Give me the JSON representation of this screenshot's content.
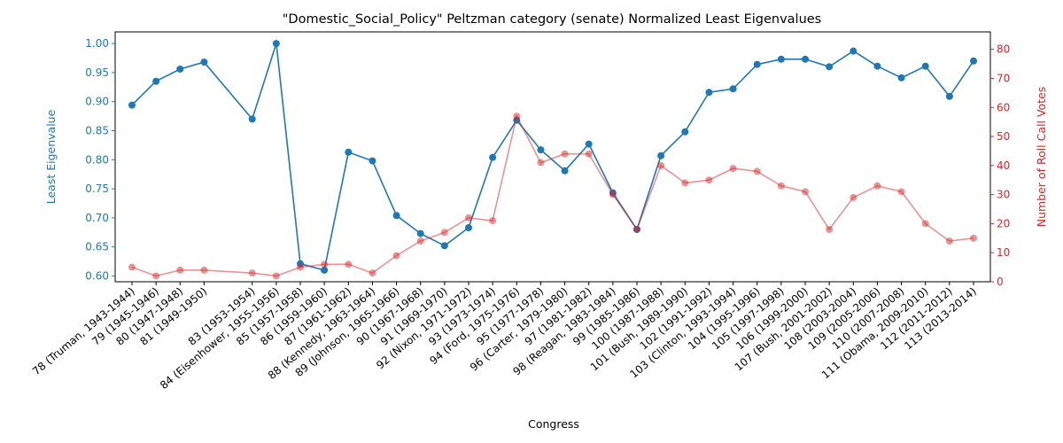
{
  "chart_data": {
    "type": "line",
    "title": "\"Domestic_Social_Policy\" Peltzman category (senate) Normalized Least Eigenvalues",
    "xlabel": "Congress",
    "x": [
      78,
      79,
      80,
      81,
      83,
      84,
      85,
      86,
      87,
      88,
      89,
      90,
      91,
      92,
      93,
      94,
      95,
      96,
      97,
      98,
      99,
      100,
      101,
      102,
      103,
      104,
      105,
      106,
      107,
      108,
      109,
      110,
      111,
      112,
      113
    ],
    "categories": [
      "78 (Truman, 1943-1944)",
      "79 (1945-1946)",
      "80 (1947-1948)",
      "81 (1949-1950)",
      "83 (1953-1954)",
      "84 (Eisenhower, 1955-1956)",
      "85 (1957-1958)",
      "86 (1959-1960)",
      "87 (1961-1962)",
      "88 (Kennedy, 1963-1964)",
      "89 (Johnson, 1965-1966)",
      "90 (1967-1968)",
      "91 (1969-1970)",
      "92 (Nixon, 1971-1972)",
      "93 (1973-1974)",
      "94 (Ford, 1975-1976)",
      "95 (1977-1978)",
      "96 (Carter, 1979-1980)",
      "97 (1981-1982)",
      "98 (Reagan, 1983-1984)",
      "99 (1985-1986)",
      "100 (1987-1988)",
      "101 (Bush, 1989-1990)",
      "102 (1991-1992)",
      "103 (Clinton, 1993-1994)",
      "104 (1995-1996)",
      "105 (1997-1998)",
      "106 (1999-2000)",
      "107 (Bush, 2001-2002)",
      "108 (2003-2004)",
      "109 (2005-2006)",
      "110 (2007-2008)",
      "111 (Obama, 2009-2010)",
      "112 (2011-2012)",
      "113 (2013-2014)"
    ],
    "series": [
      {
        "axis": "left",
        "color": "#1f77b4",
        "values": [
          0.894,
          0.935,
          0.956,
          0.968,
          0.87,
          1.0,
          0.621,
          0.61,
          0.813,
          0.798,
          0.704,
          0.673,
          0.652,
          0.683,
          0.804,
          0.868,
          0.817,
          0.781,
          0.827,
          0.743,
          0.68,
          0.807,
          0.848,
          0.916,
          0.922,
          0.964,
          0.973,
          0.973,
          0.96,
          0.987,
          0.961,
          0.941,
          0.961,
          0.909,
          0.97
        ]
      },
      {
        "axis": "right",
        "color": "#d62728",
        "values": [
          5,
          2,
          4,
          4,
          3,
          2,
          5,
          6,
          6,
          3,
          9,
          14,
          17,
          22,
          21,
          57,
          41,
          44,
          44,
          30,
          18,
          40,
          34,
          35,
          39,
          38,
          33,
          31,
          18,
          29,
          33,
          31,
          20,
          14,
          15
        ]
      }
    ],
    "left_axis": {
      "label": "Least Eigenvalue",
      "ylim": [
        0.59,
        1.02
      ],
      "ticks": [
        "0.60",
        "0.65",
        "0.70",
        "0.75",
        "0.80",
        "0.85",
        "0.90",
        "0.95",
        "1.00"
      ],
      "color": "#1f77b4"
    },
    "right_axis": {
      "label": "Number of Roll Call Votes",
      "ylim": [
        0,
        86
      ],
      "ticks": [
        "0",
        "10",
        "20",
        "30",
        "40",
        "50",
        "60",
        "70",
        "80"
      ],
      "color": "#d62728"
    },
    "grid": false,
    "legend": "none"
  }
}
